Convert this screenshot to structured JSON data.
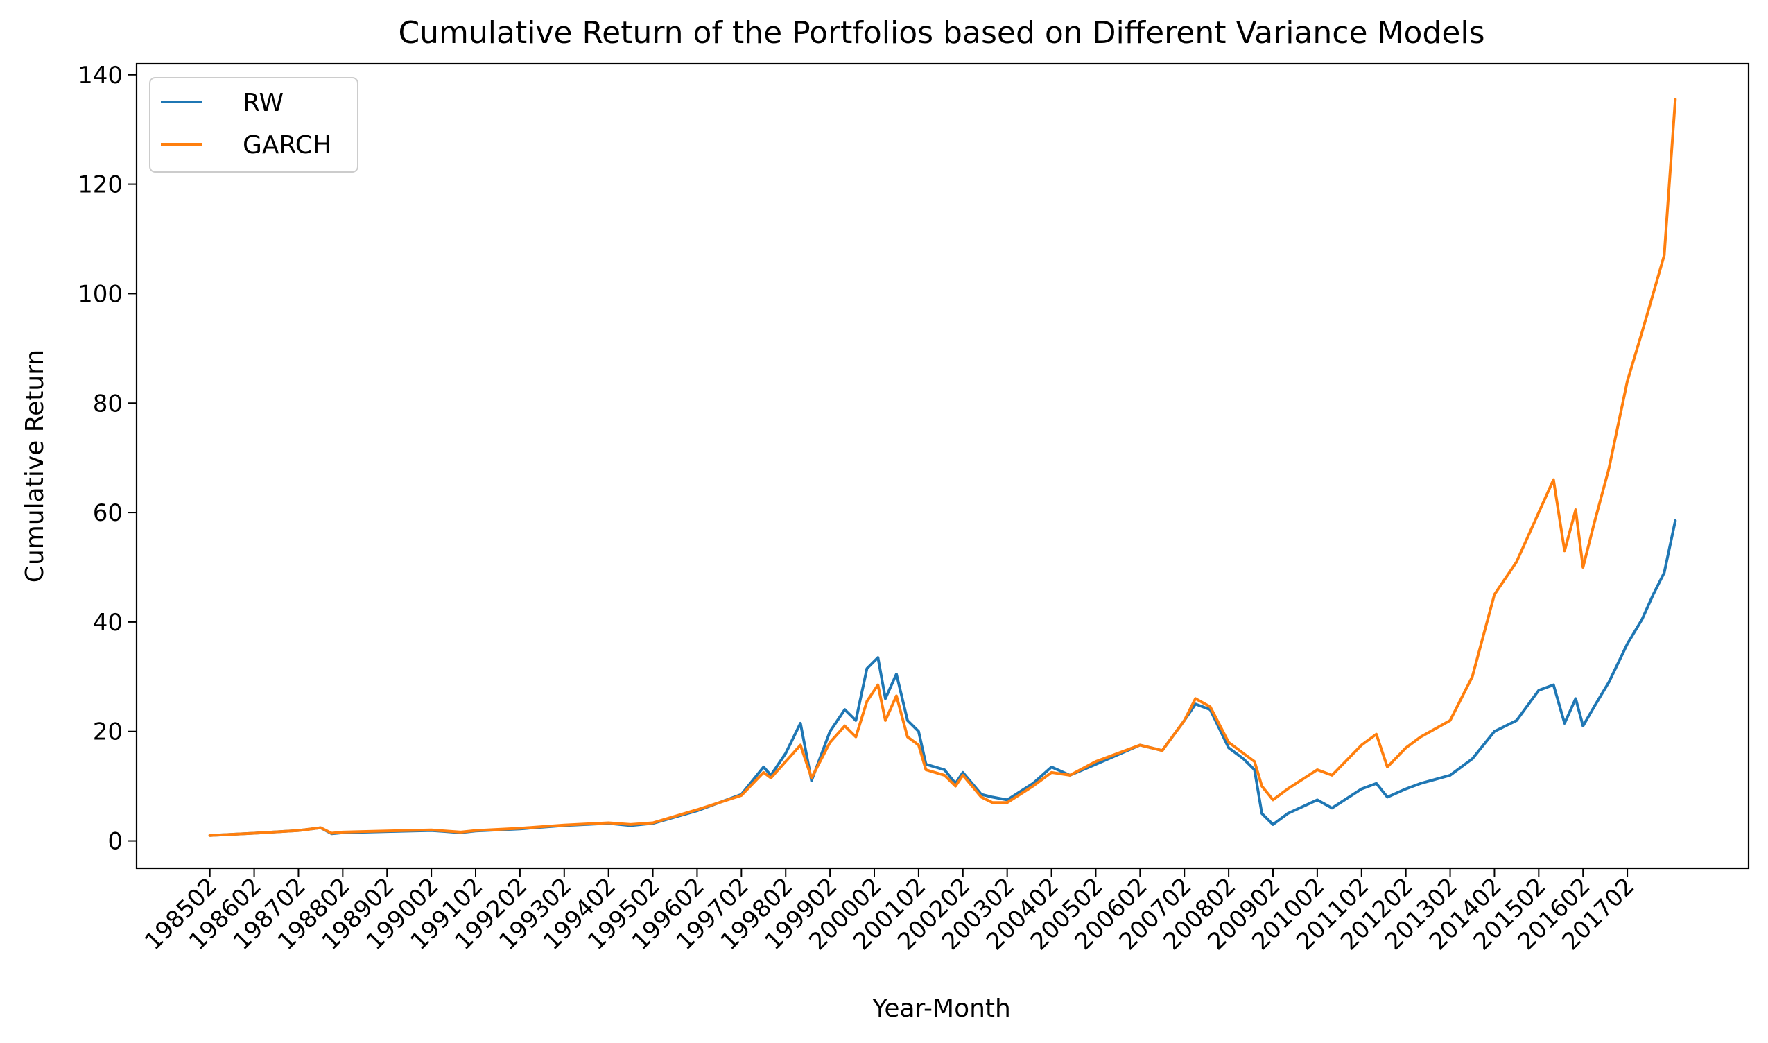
{
  "chart_data": {
    "type": "line",
    "title": "Cumulative Return of the Portfolios based on Different Variance Models",
    "xlabel": "Year-Month",
    "ylabel": "Cumulative Return",
    "ylim": [
      -5,
      142
    ],
    "yticks": [
      0,
      20,
      40,
      60,
      80,
      100,
      120,
      140
    ],
    "xticks": [
      "198502",
      "198602",
      "198702",
      "198802",
      "198902",
      "199002",
      "199102",
      "199202",
      "199302",
      "199402",
      "199502",
      "199602",
      "199702",
      "199802",
      "199902",
      "200002",
      "200102",
      "200202",
      "200302",
      "200402",
      "200502",
      "200602",
      "200702",
      "200802",
      "200902",
      "201002",
      "201102",
      "201202",
      "201302",
      "201402",
      "201502",
      "201602",
      "201702"
    ],
    "legend": "top-left",
    "grid": false,
    "colors": {
      "RW": "#1f77b4",
      "GARCH": "#ff7f0e"
    },
    "series": [
      {
        "name": "RW",
        "points": [
          [
            "198502",
            1.0
          ],
          [
            "198602",
            1.4
          ],
          [
            "198702",
            1.9
          ],
          [
            "198708",
            2.4
          ],
          [
            "198711",
            1.3
          ],
          [
            "198802",
            1.5
          ],
          [
            "198902",
            1.7
          ],
          [
            "199002",
            1.9
          ],
          [
            "199010",
            1.5
          ],
          [
            "199102",
            1.8
          ],
          [
            "199202",
            2.2
          ],
          [
            "199302",
            2.8
          ],
          [
            "199402",
            3.2
          ],
          [
            "199408",
            2.8
          ],
          [
            "199502",
            3.2
          ],
          [
            "199602",
            5.5
          ],
          [
            "199702",
            8.5
          ],
          [
            "199708",
            13.5
          ],
          [
            "199710",
            12.0
          ],
          [
            "199802",
            16.0
          ],
          [
            "199806",
            21.5
          ],
          [
            "199809",
            11.0
          ],
          [
            "199902",
            20.0
          ],
          [
            "199906",
            24.0
          ],
          [
            "199909",
            22.0
          ],
          [
            "199912",
            31.5
          ],
          [
            "200003",
            33.5
          ],
          [
            "200005",
            26.0
          ],
          [
            "200008",
            30.5
          ],
          [
            "200011",
            22.0
          ],
          [
            "200102",
            20.0
          ],
          [
            "200104",
            14.0
          ],
          [
            "200109",
            13.0
          ],
          [
            "200112",
            10.5
          ],
          [
            "200202",
            12.5
          ],
          [
            "200207",
            8.5
          ],
          [
            "200210",
            8.0
          ],
          [
            "200302",
            7.5
          ],
          [
            "200309",
            10.5
          ],
          [
            "200402",
            13.5
          ],
          [
            "200407",
            12.0
          ],
          [
            "200502",
            14.0
          ],
          [
            "200602",
            17.5
          ],
          [
            "200608",
            16.5
          ],
          [
            "200702",
            22.0
          ],
          [
            "200705",
            25.0
          ],
          [
            "200709",
            24.0
          ],
          [
            "200802",
            17.0
          ],
          [
            "200806",
            15.0
          ],
          [
            "200809",
            13.0
          ],
          [
            "200811",
            5.0
          ],
          [
            "200902",
            3.0
          ],
          [
            "200906",
            5.0
          ],
          [
            "201002",
            7.5
          ],
          [
            "201006",
            6.0
          ],
          [
            "201102",
            9.5
          ],
          [
            "201106",
            10.5
          ],
          [
            "201109",
            8.0
          ],
          [
            "201202",
            9.5
          ],
          [
            "201206",
            10.5
          ],
          [
            "201302",
            12.0
          ],
          [
            "201308",
            15.0
          ],
          [
            "201402",
            20.0
          ],
          [
            "201408",
            22.0
          ],
          [
            "201502",
            27.5
          ],
          [
            "201506",
            28.5
          ],
          [
            "201509",
            21.5
          ],
          [
            "201512",
            26.0
          ],
          [
            "201602",
            21.0
          ],
          [
            "201605",
            24.5
          ],
          [
            "201609",
            29.0
          ],
          [
            "201702",
            36.0
          ],
          [
            "201706",
            40.5
          ],
          [
            "201709",
            45.0
          ],
          [
            "201712",
            49.0
          ],
          [
            "201803",
            58.5
          ]
        ]
      },
      {
        "name": "GARCH",
        "points": [
          [
            "198502",
            1.0
          ],
          [
            "198602",
            1.4
          ],
          [
            "198702",
            1.9
          ],
          [
            "198708",
            2.4
          ],
          [
            "198711",
            1.4
          ],
          [
            "198802",
            1.6
          ],
          [
            "198902",
            1.8
          ],
          [
            "199002",
            2.0
          ],
          [
            "199010",
            1.6
          ],
          [
            "199102",
            1.9
          ],
          [
            "199202",
            2.3
          ],
          [
            "199302",
            2.9
          ],
          [
            "199402",
            3.3
          ],
          [
            "199408",
            3.0
          ],
          [
            "199502",
            3.3
          ],
          [
            "199602",
            5.7
          ],
          [
            "199702",
            8.3
          ],
          [
            "199708",
            12.5
          ],
          [
            "199710",
            11.5
          ],
          [
            "199802",
            14.5
          ],
          [
            "199806",
            17.5
          ],
          [
            "199809",
            11.5
          ],
          [
            "199902",
            18.0
          ],
          [
            "199906",
            21.0
          ],
          [
            "199909",
            19.0
          ],
          [
            "199912",
            25.5
          ],
          [
            "200003",
            28.5
          ],
          [
            "200005",
            22.0
          ],
          [
            "200008",
            26.5
          ],
          [
            "200011",
            19.0
          ],
          [
            "200102",
            17.5
          ],
          [
            "200104",
            13.0
          ],
          [
            "200109",
            12.0
          ],
          [
            "200112",
            10.0
          ],
          [
            "200202",
            12.0
          ],
          [
            "200207",
            8.0
          ],
          [
            "200210",
            7.0
          ],
          [
            "200302",
            7.0
          ],
          [
            "200309",
            10.0
          ],
          [
            "200402",
            12.5
          ],
          [
            "200407",
            12.0
          ],
          [
            "200502",
            14.5
          ],
          [
            "200602",
            17.5
          ],
          [
            "200608",
            16.5
          ],
          [
            "200702",
            22.0
          ],
          [
            "200705",
            26.0
          ],
          [
            "200709",
            24.5
          ],
          [
            "200802",
            18.0
          ],
          [
            "200806",
            16.0
          ],
          [
            "200809",
            14.5
          ],
          [
            "200811",
            10.0
          ],
          [
            "200902",
            7.5
          ],
          [
            "200906",
            9.5
          ],
          [
            "201002",
            13.0
          ],
          [
            "201006",
            12.0
          ],
          [
            "201102",
            17.5
          ],
          [
            "201106",
            19.5
          ],
          [
            "201109",
            13.5
          ],
          [
            "201202",
            17.0
          ],
          [
            "201206",
            19.0
          ],
          [
            "201302",
            22.0
          ],
          [
            "201308",
            30.0
          ],
          [
            "201402",
            45.0
          ],
          [
            "201408",
            51.0
          ],
          [
            "201502",
            60.0
          ],
          [
            "201506",
            66.0
          ],
          [
            "201509",
            53.0
          ],
          [
            "201512",
            60.5
          ],
          [
            "201602",
            50.0
          ],
          [
            "201605",
            58.0
          ],
          [
            "201609",
            68.0
          ],
          [
            "201702",
            84.0
          ],
          [
            "201706",
            93.0
          ],
          [
            "201709",
            100.0
          ],
          [
            "201712",
            107.0
          ],
          [
            "201803",
            135.5
          ]
        ]
      }
    ]
  }
}
